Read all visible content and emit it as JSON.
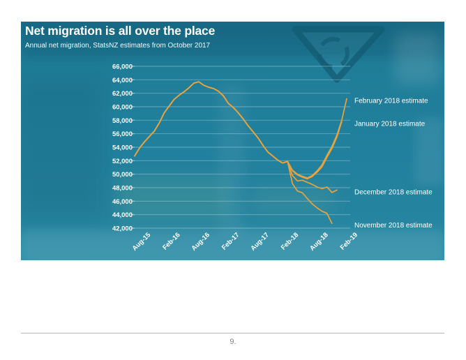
{
  "page": {
    "number_label": "9.",
    "background": "#FFFFFF",
    "divider_color": "#B3B3B8",
    "page_number_color": "#808080"
  },
  "panel": {
    "background_teal": "#1F7D98",
    "sign_outline_color": "#135C74",
    "text_color": "#FFFFFF"
  },
  "chart_data": {
    "type": "line",
    "title": "Net migration is all over the place",
    "subtitle": "Annual net migration, StatsNZ estimates from October 2017",
    "line_color": "#E8A33D",
    "grid": true,
    "gridline_color": "rgba(255,255,255,0.33)",
    "legend_position": "end-of-line annotations, right side",
    "ylim": [
      42000,
      66000
    ],
    "y_step": 2000,
    "y_tick_labels": [
      "66,000",
      "64,000",
      "62,000",
      "60,000",
      "58,000",
      "56,000",
      "54,000",
      "52,000",
      "50,000",
      "48,000",
      "46,000",
      "44,000",
      "42,000"
    ],
    "x_tick_labels": [
      "Aug-15",
      "Feb-16",
      "Aug-16",
      "Feb-17",
      "Aug-17",
      "Feb-18",
      "Aug-18",
      "Feb-19"
    ],
    "x_months": [
      "Jul-15",
      "Aug-15",
      "Sep-15",
      "Oct-15",
      "Nov-15",
      "Dec-15",
      "Jan-16",
      "Feb-16",
      "Mar-16",
      "Apr-16",
      "May-16",
      "Jun-16",
      "Jul-16",
      "Aug-16",
      "Sep-16",
      "Oct-16",
      "Nov-16",
      "Dec-16",
      "Jan-17",
      "Feb-17",
      "Mar-17",
      "Apr-17",
      "May-17",
      "Jun-17",
      "Jul-17",
      "Aug-17",
      "Sep-17",
      "Oct-17",
      "Nov-17",
      "Dec-17",
      "Jan-18",
      "Feb-18",
      "Mar-18",
      "Apr-18",
      "May-18",
      "Jun-18",
      "Jul-18",
      "Aug-18",
      "Sep-18",
      "Oct-18",
      "Nov-18",
      "Dec-18",
      "Jan-19",
      "Feb-19"
    ],
    "series": [
      {
        "name": "February 2018 estimate",
        "end_month": "Feb-19",
        "values": [
          52700,
          53900,
          54800,
          55600,
          56400,
          57600,
          59100,
          60100,
          61100,
          61700,
          62200,
          62800,
          63500,
          63700,
          63200,
          62900,
          62700,
          62300,
          61600,
          60500,
          59900,
          59100,
          58200,
          57200,
          56300,
          55400,
          54300,
          53300,
          52700,
          52100,
          51650,
          51900,
          50600,
          50000,
          49700,
          49450,
          49800,
          50500,
          51400,
          52800,
          54100,
          55800,
          58000,
          61200
        ]
      },
      {
        "name": "January 2018 estimate",
        "end_month": "Jan-19",
        "values": [
          52700,
          53900,
          54800,
          55600,
          56400,
          57600,
          59100,
          60100,
          61100,
          61700,
          62200,
          62800,
          63500,
          63700,
          63200,
          62900,
          62700,
          62300,
          61600,
          60500,
          59900,
          59100,
          58200,
          57200,
          56300,
          55400,
          54300,
          53300,
          52700,
          52100,
          51650,
          51900,
          50500,
          49900,
          49550,
          49300,
          49650,
          50300,
          51100,
          52500,
          53800,
          55500,
          57800
        ]
      },
      {
        "name": "December 2018 estimate",
        "end_month": "Dec-18",
        "values": [
          52700,
          53900,
          54800,
          55600,
          56400,
          57600,
          59100,
          60100,
          61100,
          61700,
          62200,
          62800,
          63500,
          63700,
          63200,
          62900,
          62700,
          62300,
          61600,
          60500,
          59900,
          59100,
          58200,
          57200,
          56300,
          55400,
          54300,
          53300,
          52700,
          52100,
          51650,
          51900,
          49800,
          49000,
          49100,
          48800,
          48500,
          48100,
          47850,
          48100,
          47300,
          47650
        ]
      },
      {
        "name": "November 2018 estimate",
        "end_month": "Nov-18",
        "values": [
          52700,
          53900,
          54800,
          55600,
          56400,
          57600,
          59100,
          60100,
          61100,
          61700,
          62200,
          62800,
          63500,
          63700,
          63200,
          62900,
          62700,
          62300,
          61600,
          60500,
          59900,
          59100,
          58200,
          57200,
          56300,
          55400,
          54300,
          53300,
          52700,
          52100,
          51650,
          51900,
          48600,
          47500,
          47250,
          46400,
          45600,
          45000,
          44500,
          44200,
          42700
        ]
      }
    ],
    "annotations": [
      {
        "label": "February 2018 estimate",
        "at_value": 61200
      },
      {
        "label": "January 2018 estimate",
        "at_value": 57800
      },
      {
        "label": "December 2018 estimate",
        "at_value": 47650
      },
      {
        "label": "November 2018 estimate",
        "at_value": 42700
      }
    ]
  }
}
